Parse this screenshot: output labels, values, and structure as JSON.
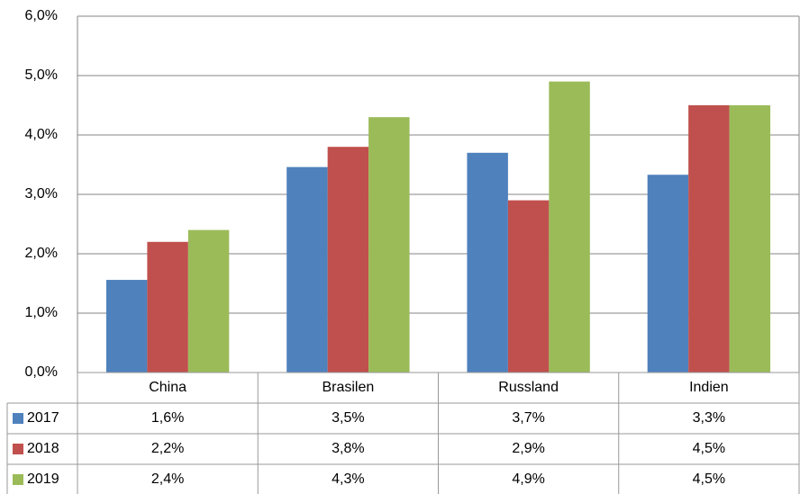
{
  "chart_data": {
    "type": "bar",
    "categories": [
      "China",
      "Brasilen",
      "Russland",
      "Indien"
    ],
    "series": [
      {
        "name": "2017",
        "color": "#4f81bd",
        "values": [
          1.56,
          3.46,
          3.7,
          3.33
        ],
        "value_labels": [
          "1,6%",
          "3,5%",
          "3,7%",
          "3,3%"
        ]
      },
      {
        "name": "2018",
        "color": "#c0504d",
        "values": [
          2.2,
          3.8,
          2.9,
          4.5
        ],
        "value_labels": [
          "2,2%",
          "3,8%",
          "2,9%",
          "4,5%"
        ]
      },
      {
        "name": "2019",
        "color": "#9bbb59",
        "values": [
          2.4,
          4.3,
          4.9,
          4.5
        ],
        "value_labels": [
          "2,4%",
          "4,3%",
          "4,9%",
          "4,5%"
        ]
      }
    ],
    "ylim": [
      0,
      6
    ],
    "yticks": [
      {
        "value": 0,
        "label": "0,0%"
      },
      {
        "value": 1,
        "label": "1,0%"
      },
      {
        "value": 2,
        "label": "2,0%"
      },
      {
        "value": 3,
        "label": "3,0%"
      },
      {
        "value": 4,
        "label": "4,0%"
      },
      {
        "value": 5,
        "label": "5,0%"
      },
      {
        "value": 6,
        "label": "6,0%"
      }
    ],
    "grid": true
  }
}
